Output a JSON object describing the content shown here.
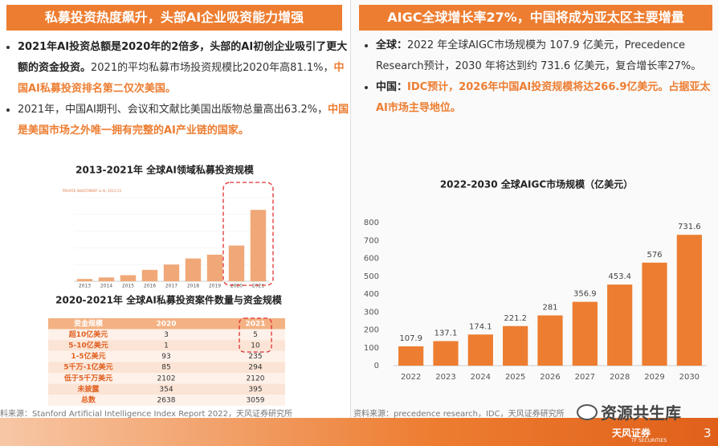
{
  "left": {
    "header": "私募投资热度飙升，头部AI企业吸资能力增强",
    "bullets": [
      {
        "bold": "2021年AI投资总额是2020年的2倍多，头部的AI初创企业吸引了更大额的资金投资。",
        "normal": "2021的平均私募市场投资规模比2020年高81.1%，",
        "highlight": "中国AI私募投资排名第二仅次美国。"
      },
      {
        "normal": "2021年，中国AI期刊、会议和文献比美国出版物总量高出63.2%，",
        "highlight": "中国是美国市场之外唯一拥有完整的AI产业链的国家。"
      }
    ],
    "table": {
      "title": "2020-2021年 全球AI私募投资案件数量与资金规模",
      "header": [
        "资金规模",
        "2020",
        "2021"
      ],
      "rows": [
        [
          "超10亿美元",
          "3",
          "5"
        ],
        [
          "5-10亿美元",
          "1",
          "10"
        ],
        [
          "1-5亿美元",
          "93",
          "235"
        ],
        [
          "5千万-1亿美元",
          "85",
          "294"
        ],
        [
          "低于5千万美元",
          "2102",
          "2120"
        ],
        [
          "未披露",
          "354",
          "395"
        ],
        [
          "总数",
          "2638",
          "3059"
        ]
      ]
    },
    "source": "料来源：Stanford Artificial Intelligence Index Report 2022，天风证券研究所"
  },
  "right": {
    "header": "AIGC全球增长率27%，中国将成为亚太区主要增量",
    "bullets": [
      {
        "bold": "全球：",
        "normal": "2022 年全球AIGC市场规模为 107.9 亿美元，Precedence Research预计，2030 年将达到约 731.6 亿美元，复合增长率27%。"
      },
      {
        "bold": "中国：",
        "highlight": "IDC预计，2026年中国AI投资规模将达266.9亿美元。占据亚太AI市场主导地位。"
      }
    ],
    "source": "资料来源：precedence research，IDC，天风证券研究所"
  },
  "chart_data": [
    {
      "type": "bar",
      "title": "2013-2021年 全球AI领域私募投资规模",
      "subtitle": "PRIVATE INVESTMENT in AI, 2013–21",
      "categories": [
        "2013",
        "2014",
        "2015",
        "2016",
        "2017",
        "2018",
        "2019",
        "2020",
        "2021"
      ],
      "values": [
        3,
        5,
        8,
        15,
        22,
        30,
        35,
        47,
        94
      ],
      "color": "#f0a878",
      "ylim": [
        0,
        110
      ],
      "grid": true
    },
    {
      "type": "bar",
      "title": "2022-2030 全球AIGC市场规模（亿美元）",
      "categories": [
        "2022",
        "2023",
        "2024",
        "2025",
        "2026",
        "2027",
        "2028",
        "2029",
        "2030"
      ],
      "values": [
        107.9,
        137.1,
        174.1,
        221.2,
        281,
        356.9,
        453.4,
        576,
        731.6
      ],
      "color": "#ed7d31",
      "ylim": [
        0,
        800
      ],
      "yticks": [
        0,
        100,
        200,
        300,
        400,
        500,
        600,
        700,
        800
      ],
      "grid": false
    }
  ],
  "footer": {
    "watermark": "资源共生库",
    "logo": "天风证券",
    "logo_en": "TF SECURITIES",
    "page": "3"
  }
}
